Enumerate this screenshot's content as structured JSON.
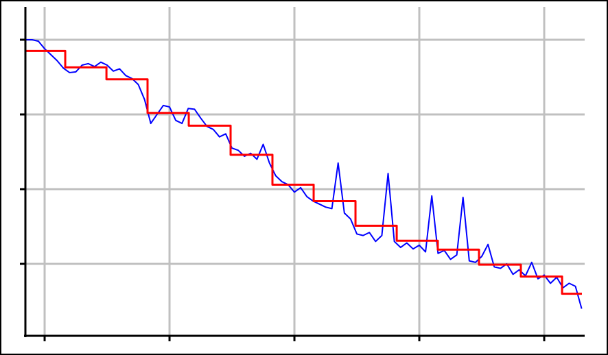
{
  "chart_data": {
    "type": "line",
    "xlim": [
      -0.154,
      4.324
    ],
    "ylim": [
      0.037,
      4.44
    ],
    "xticks": [
      0,
      1,
      2,
      3,
      4
    ],
    "yticks": [
      1,
      2,
      3,
      4
    ],
    "grid": true,
    "series": [
      {
        "color": "#0000ff",
        "drawstyle": "default",
        "x": [
          -0.15,
          -0.1,
          -0.05,
          0,
          0.05,
          0.1,
          0.15,
          0.2,
          0.25,
          0.3,
          0.35,
          0.4,
          0.45,
          0.5,
          0.55,
          0.6,
          0.65,
          0.7,
          0.75,
          0.8,
          0.85,
          0.9,
          0.95,
          1,
          1.05,
          1.1,
          1.15,
          1.2,
          1.25,
          1.3,
          1.35,
          1.4,
          1.45,
          1.5,
          1.55,
          1.6,
          1.65,
          1.7,
          1.75,
          1.8,
          1.85,
          1.9,
          1.95,
          2,
          2.05,
          2.1,
          2.15,
          2.2,
          2.25,
          2.3,
          2.35,
          2.4,
          2.45,
          2.5,
          2.55,
          2.6,
          2.65,
          2.7,
          2.75,
          2.8,
          2.85,
          2.9,
          2.95,
          3,
          3.05,
          3.1,
          3.15,
          3.2,
          3.25,
          3.3,
          3.35,
          3.4,
          3.45,
          3.5,
          3.55,
          3.6,
          3.65,
          3.7,
          3.75,
          3.8,
          3.85,
          3.9,
          3.95,
          4,
          4.05,
          4.1,
          4.15,
          4.2,
          4.25,
          4.3
        ],
        "values": [
          4.0,
          4.0,
          3.98,
          3.88,
          3.8,
          3.72,
          3.62,
          3.56,
          3.57,
          3.66,
          3.68,
          3.64,
          3.7,
          3.66,
          3.58,
          3.61,
          3.52,
          3.48,
          3.4,
          3.2,
          2.88,
          3.0,
          3.12,
          3.1,
          2.92,
          2.88,
          3.08,
          3.07,
          2.95,
          2.84,
          2.8,
          2.7,
          2.74,
          2.55,
          2.52,
          2.44,
          2.48,
          2.4,
          2.6,
          2.35,
          2.18,
          2.1,
          2.06,
          1.96,
          2.02,
          1.9,
          1.84,
          1.8,
          1.76,
          1.74,
          2.35,
          1.68,
          1.6,
          1.4,
          1.38,
          1.42,
          1.3,
          1.38,
          2.21,
          1.3,
          1.22,
          1.28,
          1.2,
          1.25,
          1.16,
          1.91,
          1.14,
          1.18,
          1.06,
          1.12,
          1.89,
          1.04,
          1.02,
          1.1,
          1.26,
          0.96,
          0.94,
          1.0,
          0.86,
          0.92,
          0.84,
          1.02,
          0.8,
          0.85,
          0.74,
          0.82,
          0.68,
          0.74,
          0.7,
          0.4
        ]
      },
      {
        "color": "#ff0000",
        "drawstyle": "steps-post",
        "x": [
          -0.154,
          0.165,
          0.495,
          0.824,
          1.154,
          1.489,
          1.824,
          2.154,
          2.489,
          2.819,
          3.148,
          3.478,
          3.813,
          4.143,
          4.302
        ],
        "values": [
          3.85,
          3.63,
          3.47,
          3.02,
          2.85,
          2.46,
          2.06,
          1.84,
          1.51,
          1.31,
          1.19,
          0.99,
          0.83,
          0.6,
          0.6
        ]
      }
    ]
  }
}
